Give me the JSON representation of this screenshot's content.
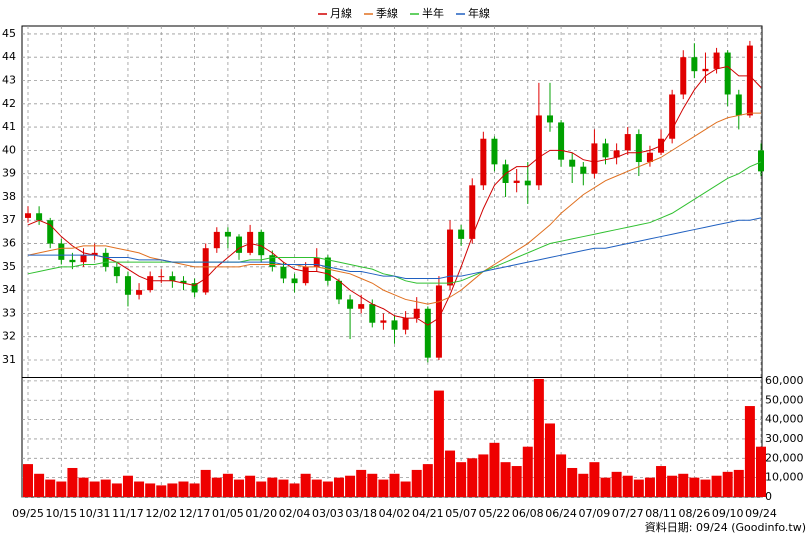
{
  "chart_data": {
    "type": "candlestick",
    "categories": [
      "09/25",
      null,
      null,
      "10/15",
      null,
      null,
      "10/31",
      null,
      null,
      "11/17",
      null,
      null,
      "12/02",
      null,
      null,
      "12/17",
      null,
      null,
      "01/05",
      null,
      null,
      "01/20",
      null,
      null,
      "02/04",
      null,
      null,
      "03/03",
      null,
      null,
      "03/18",
      null,
      null,
      "04/02",
      null,
      null,
      "04/21",
      null,
      null,
      "05/07",
      null,
      null,
      "05/22",
      null,
      null,
      "06/08",
      null,
      null,
      "06/24",
      null,
      null,
      "07/09",
      null,
      null,
      "07/27",
      null,
      null,
      "08/11",
      null,
      null,
      "08/26",
      null,
      null,
      "09/10",
      null,
      null,
      "09/24"
    ],
    "open": [
      37.1,
      37.3,
      37.0,
      36.0,
      35.3,
      35.2,
      35.5,
      35.6,
      35.0,
      34.6,
      33.8,
      34.0,
      34.6,
      34.6,
      34.4,
      34.3,
      33.9,
      35.8,
      36.5,
      36.3,
      35.6,
      36.5,
      35.5,
      35.0,
      34.5,
      34.3,
      35.0,
      35.4,
      34.4,
      33.6,
      33.2,
      33.4,
      32.6,
      32.7,
      32.3,
      32.8,
      33.2,
      31.1,
      34.2,
      36.6,
      36.2,
      38.5,
      40.5,
      39.4,
      38.6,
      38.7,
      38.5,
      41.5,
      41.2,
      39.6,
      39.3,
      39.0,
      40.3,
      39.7,
      40.0,
      40.7,
      39.5,
      39.9,
      40.5,
      42.4,
      44.0,
      43.4,
      43.5,
      44.2,
      42.4,
      41.5,
      40.0
    ],
    "high": [
      37.6,
      37.6,
      37.1,
      36.2,
      35.6,
      35.8,
      36.0,
      35.8,
      35.2,
      34.8,
      34.3,
      34.8,
      34.9,
      34.8,
      34.6,
      34.5,
      36.0,
      36.7,
      36.7,
      36.4,
      36.8,
      36.6,
      35.7,
      35.2,
      34.7,
      35.2,
      35.8,
      35.5,
      34.5,
      33.8,
      33.8,
      33.6,
      33.0,
      32.9,
      33.1,
      33.7,
      33.3,
      34.6,
      37.0,
      36.8,
      38.8,
      40.8,
      40.6,
      39.6,
      39.2,
      39.5,
      42.9,
      42.9,
      41.3,
      39.9,
      39.5,
      40.9,
      40.5,
      40.3,
      41.0,
      40.9,
      40.2,
      40.9,
      42.6,
      44.3,
      44.6,
      44.2,
      44.4,
      44.3,
      42.6,
      44.7,
      40.3
    ],
    "low": [
      36.9,
      36.8,
      35.8,
      35.1,
      34.9,
      35.0,
      35.3,
      34.8,
      34.3,
      33.3,
      33.6,
      33.9,
      34.3,
      34.1,
      34.0,
      33.7,
      33.8,
      35.6,
      35.8,
      35.3,
      35.5,
      35.2,
      34.8,
      34.3,
      33.9,
      34.2,
      34.8,
      34.2,
      33.4,
      31.9,
      33.0,
      32.4,
      32.3,
      31.7,
      32.1,
      32.6,
      30.9,
      31.0,
      34.0,
      35.9,
      36.0,
      38.3,
      39.1,
      38.0,
      38.2,
      37.7,
      38.3,
      40.8,
      39.3,
      38.6,
      38.5,
      38.8,
      39.4,
      39.4,
      39.8,
      38.9,
      39.3,
      39.8,
      40.3,
      42.2,
      43.1,
      42.9,
      43.3,
      41.9,
      40.9,
      41.4,
      38.9
    ],
    "close": [
      37.3,
      37.0,
      36.0,
      35.3,
      35.2,
      35.5,
      35.6,
      35.0,
      34.6,
      33.8,
      34.0,
      34.6,
      34.6,
      34.4,
      34.3,
      33.9,
      35.8,
      36.5,
      36.3,
      35.6,
      36.5,
      35.5,
      35.0,
      34.5,
      34.3,
      35.0,
      35.4,
      34.4,
      33.6,
      33.2,
      33.4,
      32.6,
      32.7,
      32.3,
      32.8,
      33.2,
      31.1,
      34.2,
      36.6,
      36.2,
      38.5,
      40.5,
      39.4,
      38.6,
      38.7,
      38.5,
      41.5,
      41.2,
      39.6,
      39.3,
      39.0,
      40.3,
      39.7,
      40.0,
      40.7,
      39.5,
      39.9,
      40.5,
      42.4,
      44.0,
      43.4,
      43.5,
      44.2,
      42.4,
      41.5,
      44.5,
      39.1
    ],
    "up_color": "#e00000",
    "down_color": "#00a000",
    "series": [
      {
        "name": "月線",
        "color": "#d00000",
        "values": [
          36.8,
          37.0,
          36.8,
          36.3,
          35.9,
          35.6,
          35.5,
          35.4,
          35.2,
          34.9,
          34.6,
          34.4,
          34.4,
          34.4,
          34.3,
          34.2,
          34.5,
          35.0,
          35.4,
          35.8,
          36.0,
          35.9,
          35.6,
          35.2,
          34.9,
          34.8,
          34.8,
          34.7,
          34.4,
          34.0,
          33.7,
          33.4,
          33.2,
          32.9,
          32.8,
          32.8,
          32.5,
          32.8,
          33.8,
          35.0,
          36.3,
          37.5,
          38.5,
          39.0,
          39.3,
          39.3,
          39.7,
          40.0,
          40.0,
          39.9,
          39.6,
          39.5,
          39.6,
          39.7,
          39.9,
          39.9,
          40.0,
          40.2,
          40.9,
          41.8,
          42.6,
          43.2,
          43.5,
          43.6,
          43.2,
          43.2,
          42.7
        ]
      },
      {
        "name": "季線",
        "color": "#e07020",
        "values": [
          35.5,
          35.6,
          35.7,
          35.8,
          35.8,
          35.9,
          35.9,
          35.9,
          35.8,
          35.7,
          35.6,
          35.4,
          35.3,
          35.2,
          35.1,
          35.0,
          35.0,
          35.0,
          35.0,
          35.0,
          35.1,
          35.1,
          35.1,
          35.1,
          35.1,
          35.0,
          35.0,
          34.9,
          34.8,
          34.7,
          34.5,
          34.3,
          34.0,
          33.8,
          33.6,
          33.5,
          33.4,
          33.5,
          33.7,
          34.0,
          34.4,
          34.8,
          35.1,
          35.4,
          35.7,
          36.0,
          36.4,
          36.8,
          37.3,
          37.7,
          38.1,
          38.4,
          38.7,
          38.9,
          39.1,
          39.3,
          39.5,
          39.7,
          40.0,
          40.3,
          40.6,
          40.9,
          41.2,
          41.4,
          41.5,
          41.6,
          41.6
        ]
      },
      {
        "name": "半年",
        "color": "#30c030",
        "values": [
          34.7,
          34.8,
          34.9,
          35.0,
          35.0,
          35.1,
          35.1,
          35.2,
          35.2,
          35.2,
          35.2,
          35.2,
          35.2,
          35.2,
          35.2,
          35.2,
          35.2,
          35.2,
          35.2,
          35.2,
          35.3,
          35.3,
          35.4,
          35.4,
          35.4,
          35.4,
          35.4,
          35.3,
          35.2,
          35.1,
          35.0,
          34.9,
          34.7,
          34.6,
          34.4,
          34.3,
          34.3,
          34.3,
          34.3,
          34.4,
          34.6,
          34.8,
          35.0,
          35.2,
          35.4,
          35.6,
          35.8,
          36.0,
          36.1,
          36.2,
          36.3,
          36.4,
          36.5,
          36.6,
          36.7,
          36.8,
          36.9,
          37.1,
          37.3,
          37.6,
          37.9,
          38.2,
          38.5,
          38.8,
          39.0,
          39.3,
          39.5
        ]
      },
      {
        "name": "年線",
        "color": "#2060c0",
        "values": [
          35.5,
          35.5,
          35.5,
          35.5,
          35.5,
          35.5,
          35.5,
          35.4,
          35.4,
          35.4,
          35.3,
          35.3,
          35.3,
          35.2,
          35.2,
          35.2,
          35.2,
          35.2,
          35.2,
          35.2,
          35.2,
          35.2,
          35.2,
          35.1,
          35.1,
          35.1,
          35.1,
          35.0,
          34.9,
          34.8,
          34.8,
          34.7,
          34.6,
          34.6,
          34.5,
          34.5,
          34.5,
          34.5,
          34.6,
          34.6,
          34.7,
          34.8,
          34.9,
          35.0,
          35.1,
          35.2,
          35.3,
          35.4,
          35.5,
          35.6,
          35.7,
          35.8,
          35.8,
          35.9,
          36.0,
          36.1,
          36.2,
          36.3,
          36.4,
          36.5,
          36.6,
          36.7,
          36.8,
          36.9,
          37.0,
          37.0,
          37.1
        ]
      }
    ],
    "ylim": [
      30.27,
      45.34
    ],
    "yticks": [
      31,
      32,
      33,
      34,
      35,
      36,
      37,
      38,
      39,
      40,
      41,
      42,
      43,
      44,
      45
    ],
    "grid": true,
    "volume": {
      "color": "#ee0000",
      "values": [
        17000,
        12000,
        9000,
        8000,
        15000,
        10000,
        8000,
        9000,
        7000,
        11000,
        8000,
        7000,
        6000,
        7000,
        8000,
        7000,
        14000,
        10000,
        12000,
        9000,
        11000,
        8000,
        10000,
        9000,
        7000,
        12000,
        9000,
        8000,
        10000,
        11000,
        14000,
        12000,
        9000,
        12000,
        8000,
        14000,
        17000,
        55000,
        24000,
        18000,
        20000,
        22000,
        28000,
        18000,
        16000,
        26000,
        61000,
        38000,
        22000,
        15000,
        12000,
        18000,
        10000,
        13000,
        11000,
        9000,
        10000,
        16000,
        11000,
        12000,
        10000,
        9000,
        11000,
        13000,
        14000,
        47000,
        26000
      ],
      "ylim": [
        0,
        61500
      ],
      "yticks": [
        {
          "value": 0,
          "label": "0"
        },
        {
          "value": 10000,
          "label": "10,000"
        },
        {
          "value": 20000,
          "label": "20,000"
        },
        {
          "value": 30000,
          "label": "30,000"
        },
        {
          "value": 40000,
          "label": "40,000"
        },
        {
          "value": 50000,
          "label": "50,000"
        },
        {
          "value": 60000,
          "label": "60,000"
        }
      ]
    },
    "footnote": "資料日期: 09/24 (Goodinfo.tw)"
  }
}
